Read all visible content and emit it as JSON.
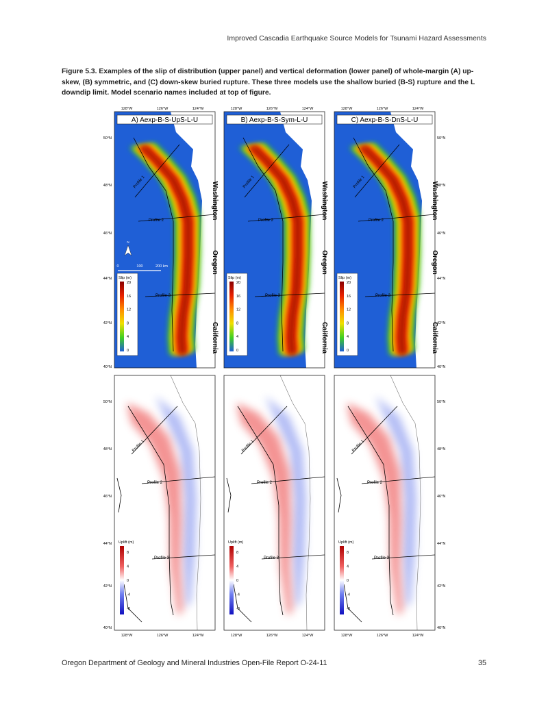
{
  "header": "Improved Cascadia Earthquake Source Models for Tsunami Hazard Assessments",
  "caption": "Figure 5.3. Examples of the slip of distribution (upper panel) and vertical deformation (lower panel) of whole-margin (A) up-skew, (B) symmetric, and (C) down-skew buried rupture. These three models use the shallow buried (B-S) rupture and the L downdip limit. Model scenario names included at top of figure.",
  "footer": {
    "left": "Oregon Department of Geology and Mineral Industries Open-File Report O-24-11",
    "right": "35"
  },
  "figure": {
    "scenarios": [
      "A) Aexp-B-S-UpS-L-U",
      "B) Aexp-B-S-Sym-L-U",
      "C) Aexp-B-S-DnS-L-U"
    ],
    "lon_ticks": [
      "128°W",
      "126°W",
      "124°W"
    ],
    "lat_ticks": [
      "50°N",
      "48°N",
      "46°N",
      "44°N",
      "42°N",
      "40°N"
    ],
    "states": [
      "Washington",
      "Oregon",
      "California"
    ],
    "profiles": [
      "Profile 1",
      "Profile 2",
      "Profile 3"
    ],
    "slip_legend": {
      "title": "Slip (m)",
      "ticks": [
        "20",
        "16",
        "12",
        "8",
        "4",
        "0"
      ]
    },
    "uplift_legend": {
      "title": "Uplift (m)",
      "ticks": [
        "8",
        "4",
        "0",
        "-4",
        "-8"
      ]
    },
    "scale_bar": {
      "labels": [
        "0",
        "100",
        "200 km"
      ]
    },
    "north_label": "N",
    "colors": {
      "ocean": "#1f5fd6",
      "uplift": "#e84040",
      "subsidence": "#5060e0"
    }
  }
}
